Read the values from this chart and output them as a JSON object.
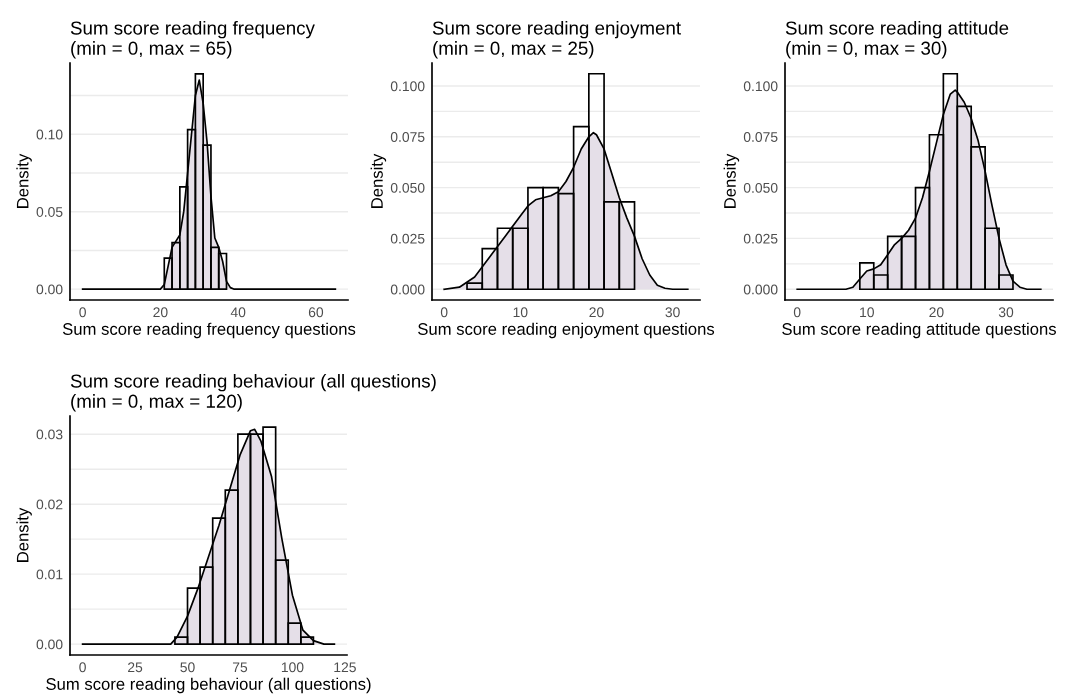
{
  "chart_data": [
    {
      "type": "histogram",
      "title": "Sum score reading frequency\n(min = 0, max = 65)",
      "xlabel": "Sum score reading frequency questions",
      "ylabel": "Density",
      "bins": [
        21,
        23,
        25,
        27,
        29,
        31,
        33,
        35,
        37
      ],
      "series": [
        {
          "type": "histogram",
          "color": "#000000",
          "values": [
            0.02,
            0.03,
            0.066,
            0.103,
            0.139,
            0.093,
            0.027,
            0.023
          ]
        },
        {
          "type": "area",
          "color": "#e5dfe8",
          "x": [
            0,
            20,
            21,
            22,
            23,
            24,
            25,
            26,
            27,
            28,
            29,
            30,
            31,
            32,
            33,
            34,
            35,
            36,
            37,
            38,
            39,
            65
          ],
          "values": [
            0,
            0,
            0.003,
            0.015,
            0.027,
            0.031,
            0.035,
            0.05,
            0.075,
            0.1,
            0.125,
            0.135,
            0.12,
            0.095,
            0.06,
            0.033,
            0.027,
            0.018,
            0.005,
            0.001,
            0,
            0
          ]
        }
      ],
      "xlim": [
        -3.25,
        68.25
      ],
      "xticks": [
        0,
        20,
        40,
        60
      ],
      "ylim": [
        -0.007,
        0.146
      ],
      "yticks": [
        {
          "value": 0,
          "label": "0.00"
        },
        {
          "value": 0.025,
          "label": null
        },
        {
          "value": 0.05,
          "label": "0.05"
        },
        {
          "value": 0.075,
          "label": null
        },
        {
          "value": 0.1,
          "label": "0.10"
        },
        {
          "value": 0.125,
          "label": null
        }
      ],
      "grid": "y"
    },
    {
      "type": "histogram",
      "title": "Sum score reading enjoyment\n(min = 0, max = 25)",
      "xlabel": "Sum score reading enjoyment questions",
      "ylabel": "Density",
      "bins": [
        3,
        5,
        7,
        9,
        11,
        13,
        15,
        17,
        19,
        21,
        23,
        25
      ],
      "series": [
        {
          "type": "histogram",
          "color": "#000000",
          "values": [
            0.003,
            0.02,
            0.03,
            0.03,
            0.05,
            0.05,
            0.047,
            0.08,
            0.106,
            0.043,
            0.043
          ]
        },
        {
          "type": "area",
          "color": "#e5dfe8",
          "x": [
            0,
            2,
            4,
            6,
            8,
            10,
            11,
            12,
            13,
            14,
            15,
            16,
            17,
            18,
            19,
            19.6,
            20,
            21,
            22,
            23,
            24,
            25,
            26,
            27,
            28,
            29,
            30,
            32
          ],
          "values": [
            0,
            0.001,
            0.006,
            0.016,
            0.026,
            0.036,
            0.041,
            0.044,
            0.045,
            0.046,
            0.048,
            0.053,
            0.06,
            0.069,
            0.075,
            0.077,
            0.076,
            0.069,
            0.057,
            0.045,
            0.035,
            0.026,
            0.015,
            0.007,
            0.002,
            0.0005,
            0,
            0
          ]
        }
      ],
      "xlim": [
        -1.6,
        33.6
      ],
      "xticks": [
        0,
        10,
        20,
        30
      ],
      "ylim": [
        -0.0053,
        0.1113
      ],
      "yticks": [
        {
          "value": 0,
          "label": "0.000"
        },
        {
          "value": 0.0125,
          "label": null
        },
        {
          "value": 0.025,
          "label": "0.025"
        },
        {
          "value": 0.0375,
          "label": null
        },
        {
          "value": 0.05,
          "label": "0.050"
        },
        {
          "value": 0.0625,
          "label": null
        },
        {
          "value": 0.075,
          "label": "0.075"
        },
        {
          "value": 0.0875,
          "label": null
        },
        {
          "value": 0.1,
          "label": "0.100"
        }
      ],
      "grid": "y"
    },
    {
      "type": "histogram",
      "title": "Sum score reading attitude\n(min = 0, max = 30)",
      "xlabel": "Sum score reading attitude questions",
      "ylabel": "Density",
      "bins": [
        9,
        11,
        13,
        15,
        17,
        19,
        21,
        23,
        25,
        27,
        29,
        31
      ],
      "series": [
        {
          "type": "histogram",
          "color": "#000000",
          "values": [
            0.013,
            0.007,
            0.026,
            0.026,
            0.05,
            0.076,
            0.106,
            0.09,
            0.07,
            0.03,
            0.007
          ]
        },
        {
          "type": "area",
          "color": "#e5dfe8",
          "x": [
            0,
            7,
            8,
            9,
            10,
            11,
            12,
            13,
            14,
            15,
            16,
            17,
            18,
            19,
            20,
            21,
            22,
            22.7,
            23,
            24,
            25,
            26,
            27,
            28,
            29,
            30,
            31,
            32,
            33,
            35
          ],
          "values": [
            0,
            0,
            0.001,
            0.005,
            0.009,
            0.01,
            0.012,
            0.017,
            0.022,
            0.025,
            0.029,
            0.035,
            0.045,
            0.058,
            0.072,
            0.086,
            0.096,
            0.098,
            0.097,
            0.092,
            0.084,
            0.073,
            0.058,
            0.041,
            0.025,
            0.012,
            0.004,
            0.001,
            0,
            0
          ]
        }
      ],
      "xlim": [
        -1.75,
        36.75
      ],
      "xticks": [
        0,
        10,
        20,
        30
      ],
      "ylim": [
        -0.0053,
        0.1113
      ],
      "yticks": [
        {
          "value": 0,
          "label": "0.000"
        },
        {
          "value": 0.0125,
          "label": null
        },
        {
          "value": 0.025,
          "label": "0.025"
        },
        {
          "value": 0.0375,
          "label": null
        },
        {
          "value": 0.05,
          "label": "0.050"
        },
        {
          "value": 0.0625,
          "label": null
        },
        {
          "value": 0.075,
          "label": "0.075"
        },
        {
          "value": 0.0875,
          "label": null
        },
        {
          "value": 0.1,
          "label": "0.100"
        }
      ],
      "grid": "y"
    },
    {
      "type": "histogram",
      "title": "Sum score reading behaviour (all questions)\n(min = 0, max = 120)",
      "xlabel": "Sum score reading behaviour (all questions)",
      "ylabel": "Density",
      "bins": [
        44,
        50,
        56,
        62,
        68,
        74,
        80,
        86,
        92,
        98,
        104,
        110
      ],
      "series": [
        {
          "type": "histogram",
          "color": "#000000",
          "values": [
            0.001,
            0.008,
            0.011,
            0.018,
            0.022,
            0.03,
            0.03,
            0.031,
            0.012,
            0.003,
            0.001
          ]
        },
        {
          "type": "area",
          "color": "#e5dfe8",
          "x": [
            0,
            42,
            45,
            50,
            55,
            60,
            65,
            70,
            75,
            80,
            82,
            85,
            90,
            95,
            100,
            105,
            110,
            115,
            120
          ],
          "values": [
            0,
            0,
            0.001,
            0.004,
            0.008,
            0.0125,
            0.017,
            0.022,
            0.027,
            0.0305,
            0.0307,
            0.029,
            0.024,
            0.015,
            0.007,
            0.002,
            0.0005,
            0,
            0
          ]
        }
      ],
      "xlim": [
        -6,
        126
      ],
      "xticks": [
        0,
        25,
        50,
        75,
        100,
        125
      ],
      "ylim": [
        -0.00155,
        0.0326
      ],
      "yticks": [
        {
          "value": 0,
          "label": "0.00"
        },
        {
          "value": 0.005,
          "label": null
        },
        {
          "value": 0.01,
          "label": "0.01"
        },
        {
          "value": 0.015,
          "label": null
        },
        {
          "value": 0.02,
          "label": "0.02"
        },
        {
          "value": 0.025,
          "label": null
        },
        {
          "value": 0.03,
          "label": "0.03"
        }
      ],
      "grid": "y"
    }
  ]
}
